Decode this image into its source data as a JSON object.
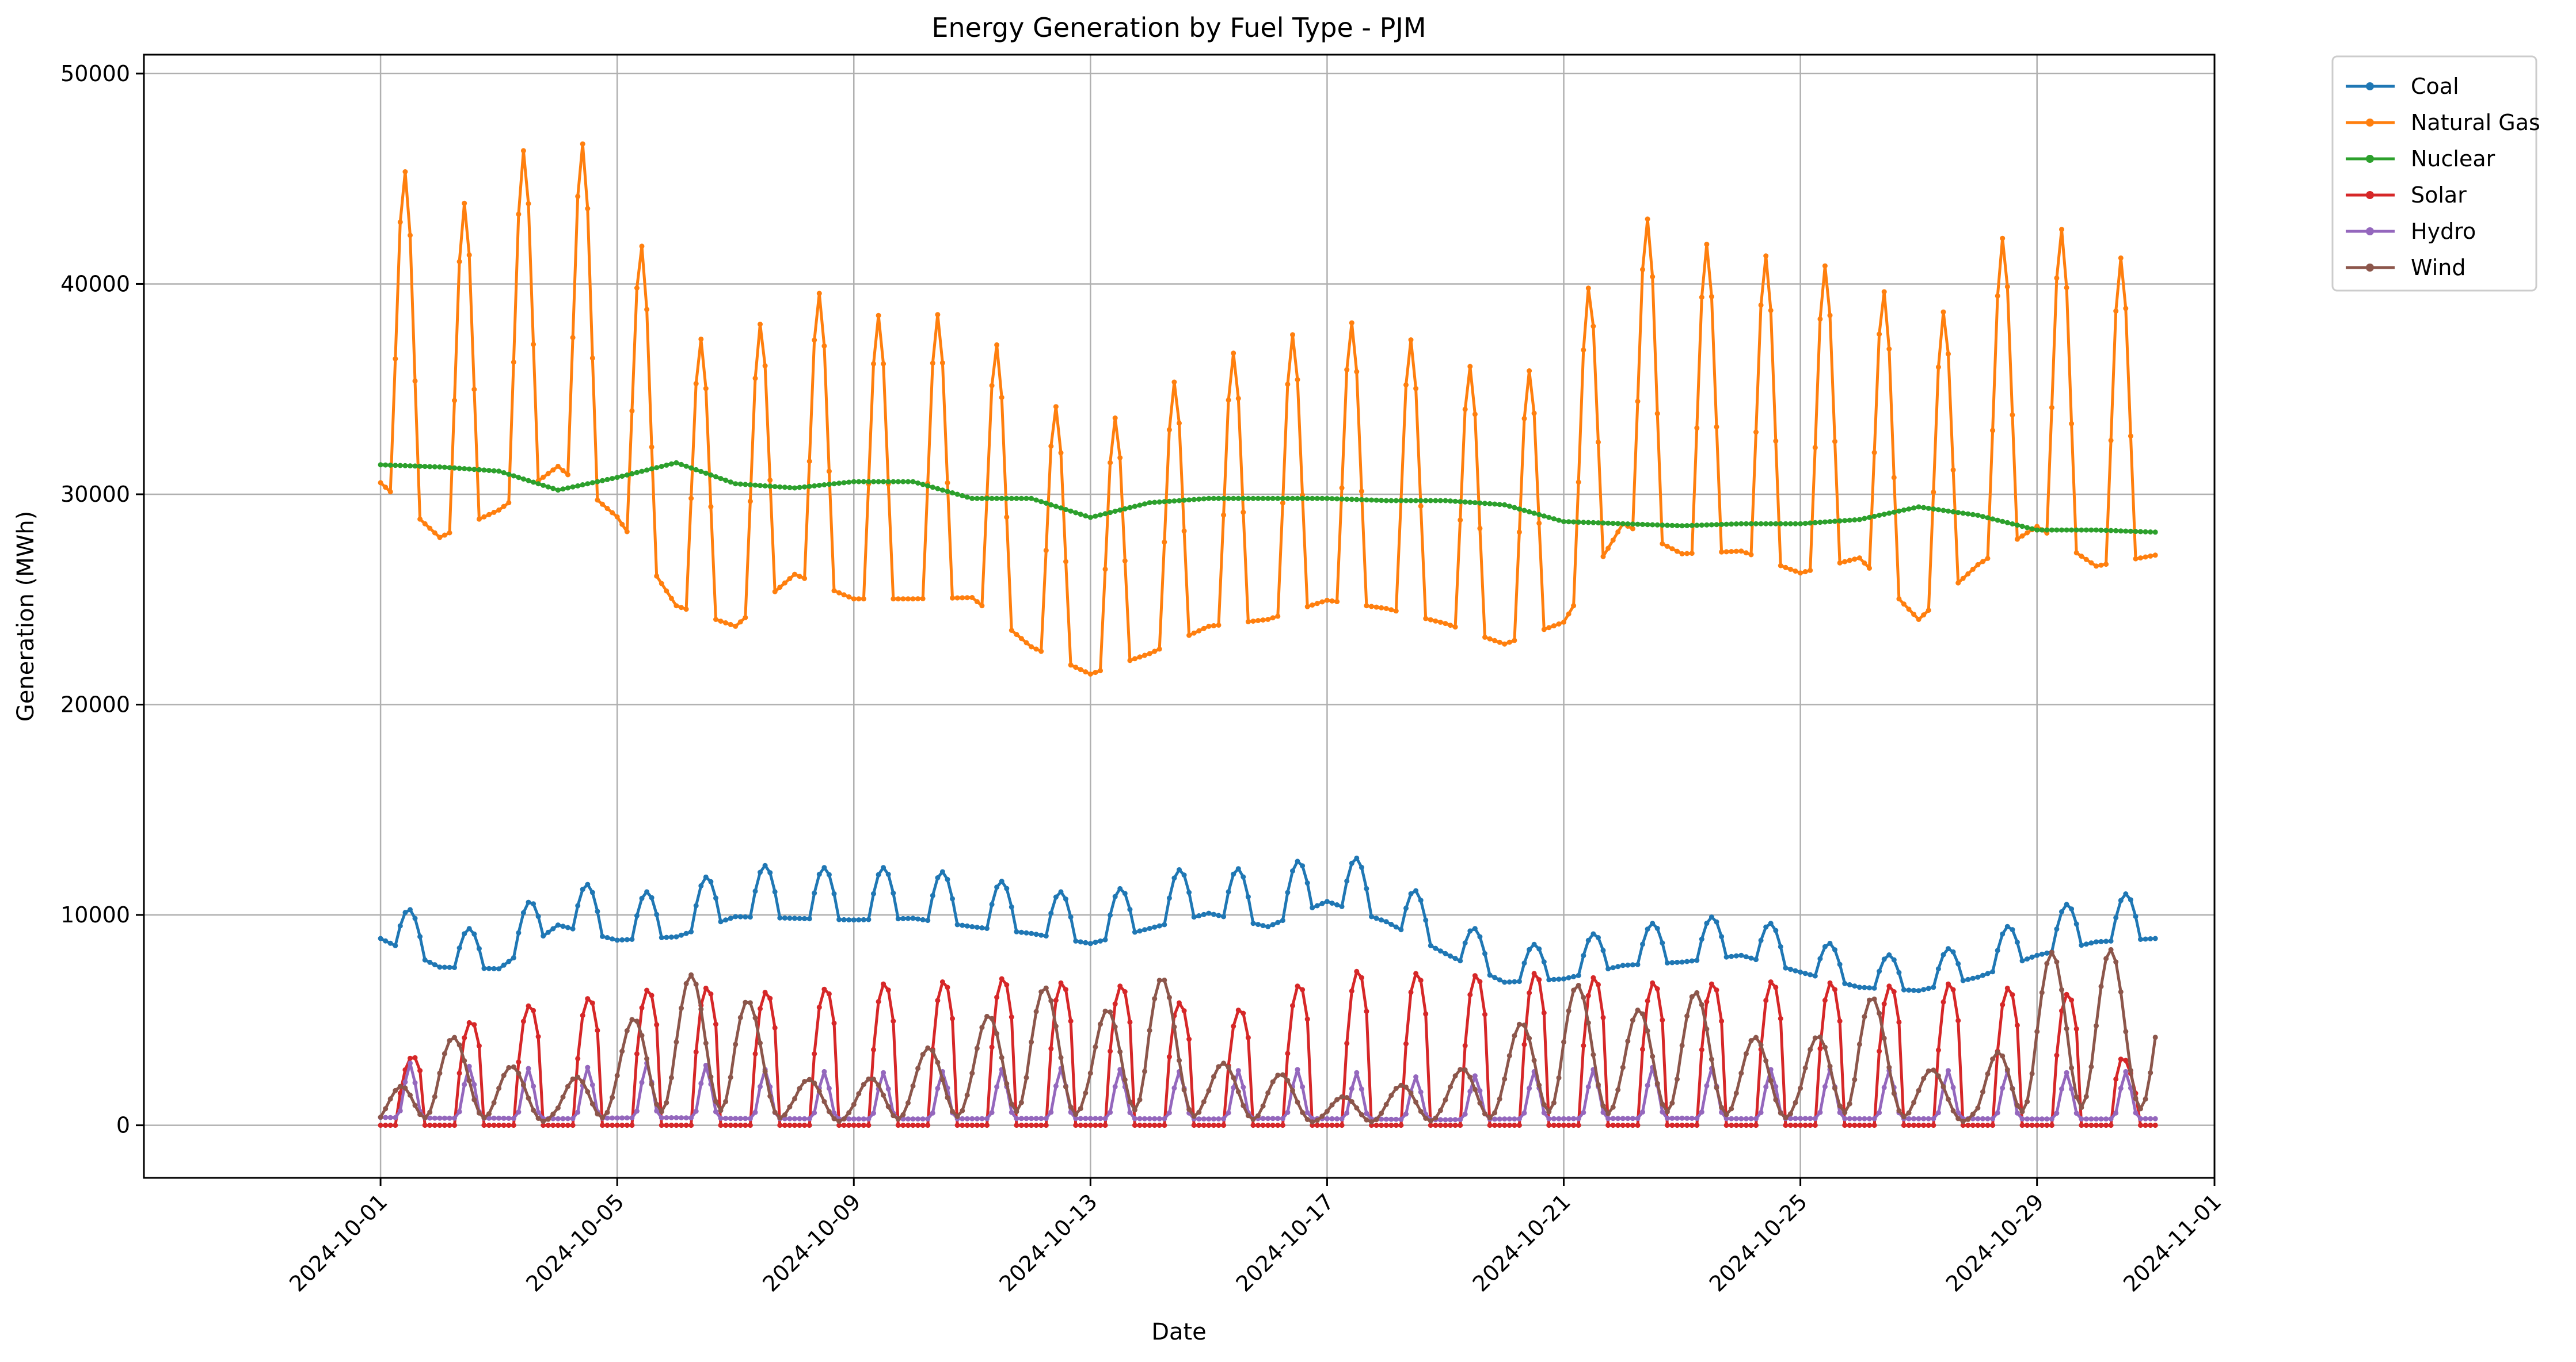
{
  "chart_data": {
    "type": "line",
    "title": "Energy Generation by Fuel Type - PJM",
    "xlabel": "Date",
    "ylabel": "Generation (MWh)",
    "xlim": [
      "2024-09-27",
      "2024-11-01"
    ],
    "ylim": [
      -2500,
      50900
    ],
    "grid": true,
    "legend_position": "outside-top-right",
    "x_ticks": [
      "2024-10-01",
      "2024-10-05",
      "2024-10-09",
      "2024-10-13",
      "2024-10-17",
      "2024-10-21",
      "2024-10-25",
      "2024-10-29",
      "2024-11-01"
    ],
    "y_ticks": [
      0,
      10000,
      20000,
      30000,
      40000,
      50000
    ],
    "x": [
      "2024-10-01",
      "2024-10-02",
      "2024-10-03",
      "2024-10-04",
      "2024-10-05",
      "2024-10-06",
      "2024-10-07",
      "2024-10-08",
      "2024-10-09",
      "2024-10-10",
      "2024-10-11",
      "2024-10-12",
      "2024-10-13",
      "2024-10-14",
      "2024-10-15",
      "2024-10-16",
      "2024-10-17",
      "2024-10-18",
      "2024-10-19",
      "2024-10-20",
      "2024-10-21",
      "2024-10-22",
      "2024-10-23",
      "2024-10-24",
      "2024-10-25",
      "2024-10-26",
      "2024-10-27",
      "2024-10-28",
      "2024-10-29",
      "2024-10-30",
      "2024-10-31"
    ],
    "series": [
      {
        "name": "Coal",
        "color": "#1f77b4",
        "values": [
          11100,
          9400,
          9300,
          11900,
          11000,
          11200,
          12400,
          12300,
          12200,
          12300,
          11800,
          11400,
          10800,
          11700,
          12600,
          11800,
          13300,
          12100,
          10200,
          8500,
          8700,
          9500,
          9700,
          10100,
          9100,
          8200,
          8000,
          8800,
          10100,
          10900,
          11100
        ]
      },
      {
        "name": "Natural Gas",
        "color": "#ff7f0e",
        "values": [
          47000,
          43000,
          45000,
          48200,
          44500,
          38000,
          36500,
          40300,
          38500,
          38500,
          38600,
          35000,
          33000,
          34500,
          36500,
          37000,
          38400,
          37800,
          36700,
          35200,
          36800,
          44000,
          41800,
          42000,
          40400,
          41500,
          37000,
          41000,
          43800,
          40900,
          41700
        ]
      },
      {
        "name": "Nuclear",
        "color": "#2ca02c",
        "values": [
          31400,
          31300,
          31100,
          30200,
          30800,
          31500,
          30500,
          30300,
          30600,
          30600,
          29800,
          29800,
          28900,
          29600,
          29800,
          29800,
          29800,
          29700,
          29700,
          29500,
          28700,
          28600,
          28500,
          28600,
          28600,
          28800,
          29400,
          29000,
          28300,
          28300,
          28200
        ]
      },
      {
        "name": "Solar",
        "color": "#d62728",
        "values": [
          2200,
          4200,
          5600,
          5800,
          6300,
          6600,
          6500,
          6200,
          6800,
          6700,
          7000,
          7000,
          6600,
          6700,
          5000,
          6000,
          7300,
          7400,
          7100,
          7200,
          7300,
          6800,
          6800,
          6700,
          7000,
          6600,
          6700,
          6800,
          6300,
          6200,
          0
        ]
      },
      {
        "name": "Hydro",
        "color": "#9467bd",
        "values": [
          3100,
          2800,
          2800,
          2600,
          2900,
          3000,
          2700,
          2600,
          2500,
          2500,
          2600,
          2700,
          2700,
          2600,
          2500,
          2700,
          2600,
          2400,
          2200,
          2500,
          2600,
          2700,
          2800,
          2600,
          2700,
          2600,
          2600,
          2600,
          2500,
          2500,
          2600
        ]
      },
      {
        "name": "Wind",
        "color": "#8c564b",
        "values": [
          700,
          4500,
          3200,
          1500,
          4300,
          7200,
          7000,
          2300,
          1800,
          3400,
          4500,
          7200,
          4500,
          8200,
          3000,
          2800,
          1200,
          1800,
          2200,
          4000,
          7200,
          5000,
          6900,
          4500,
          3200,
          7000,
          3000,
          1500,
          8100,
          8600,
          7600
        ]
      }
    ]
  }
}
